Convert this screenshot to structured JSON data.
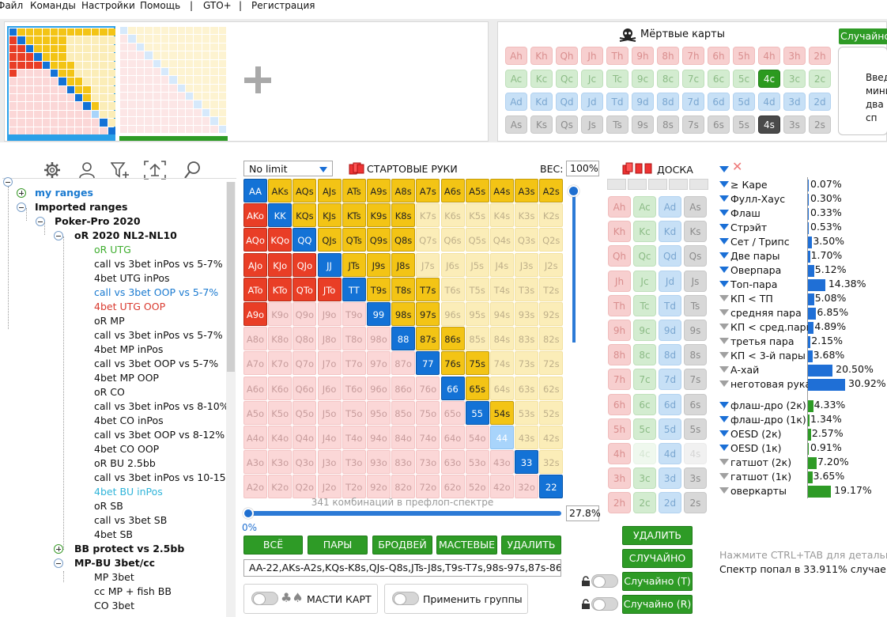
{
  "menu": [
    "Файл",
    "Команды",
    "Настройки",
    "Помощь",
    "|",
    "GTO+",
    "|",
    "Регистрация"
  ],
  "dead_cards": {
    "title": "Мёртвые карты",
    "random_label": "Случайно",
    "hint": "Введ мини два сп",
    "hint_lines": [
      "Введ",
      "мини",
      "два сп"
    ],
    "ranks": [
      "A",
      "K",
      "Q",
      "J",
      "T",
      "9",
      "8",
      "7",
      "6",
      "5",
      "4",
      "3",
      "2"
    ],
    "suits": [
      "h",
      "c",
      "d",
      "s"
    ],
    "selected": [
      "4c",
      "4s"
    ]
  },
  "tree": {
    "items": [
      {
        "label": "my ranges",
        "level": 1,
        "color": "#1a7ad0",
        "bold": true,
        "toggle": "plus"
      },
      {
        "label": "Imported ranges",
        "level": 1,
        "color": "#111",
        "bold": true,
        "toggle": "minus"
      },
      {
        "label": "Poker-Pro 2020",
        "level": 2,
        "color": "#111",
        "bold": true,
        "toggle": "minus"
      },
      {
        "label": "oR 2020 NL2-NL10",
        "level": 3,
        "color": "#111",
        "bold": true,
        "toggle": "minus"
      },
      {
        "label": "oR UTG",
        "level": 4,
        "color": "#3fae2f"
      },
      {
        "label": "call vs 3bet inPos vs 5-7%",
        "level": 4,
        "color": "#111"
      },
      {
        "label": "4bet UTG inPos",
        "level": 4,
        "color": "#111"
      },
      {
        "label": "call  vs 3bet OOP vs 5-7%",
        "level": 4,
        "color": "#1a7ad0"
      },
      {
        "label": "4bet UTG OOP",
        "level": 4,
        "color": "#d93a2f"
      },
      {
        "label": "oR MP",
        "level": 4,
        "color": "#111"
      },
      {
        "label": "call vs 3bet inPos vs 5-7%",
        "level": 4,
        "color": "#111"
      },
      {
        "label": "4bet MP inPos",
        "level": 4,
        "color": "#111"
      },
      {
        "label": "call vs 3bet OOP vs 5-7%",
        "level": 4,
        "color": "#111"
      },
      {
        "label": "4bet MP OOP",
        "level": 4,
        "color": "#111"
      },
      {
        "label": "oR CO",
        "level": 4,
        "color": "#111"
      },
      {
        "label": "call vs 3bet inPos vs 8-10%",
        "level": 4,
        "color": "#111"
      },
      {
        "label": "4bet CO inPos",
        "level": 4,
        "color": "#111"
      },
      {
        "label": "call vs 3bet OOP vs 8-12%",
        "level": 4,
        "color": "#111"
      },
      {
        "label": "4bet CO OOP",
        "level": 4,
        "color": "#111"
      },
      {
        "label": "oR BU 2.5bb",
        "level": 4,
        "color": "#111"
      },
      {
        "label": "call vs 3bet inPos vs 10-15%",
        "level": 4,
        "color": "#111"
      },
      {
        "label": "4bet BU inPos",
        "level": 4,
        "color": "#2fb4d9"
      },
      {
        "label": "oR SB",
        "level": 4,
        "color": "#111"
      },
      {
        "label": "call vs 3bet SB",
        "level": 4,
        "color": "#111"
      },
      {
        "label": "4bet SB",
        "level": 4,
        "color": "#111"
      },
      {
        "label": "BB protect vs 2.5bb",
        "level": 3,
        "color": "#111",
        "bold": true,
        "toggle": "plus"
      },
      {
        "label": "MP-BU 3bet/cc",
        "level": 3,
        "color": "#111",
        "bold": true,
        "toggle": "minus"
      },
      {
        "label": "MP 3bet",
        "level": 4,
        "color": "#111"
      },
      {
        "label": "cc MP + fish BB",
        "level": 4,
        "color": "#111"
      },
      {
        "label": "CO 3bet",
        "level": 4,
        "color": "#111"
      }
    ]
  },
  "controls": {
    "game_type": "No limit",
    "start_hands_label": "СТАРТОВЫЕ РУКИ",
    "weight_label": "ВЕС:",
    "weight_value": "100%",
    "combos_text": "341 комбинаций в префлоп-спектре",
    "slider_min": "0%",
    "slider_value": "27.8%",
    "buttons": [
      "ВСЁ",
      "ПАРЫ",
      "БРОДВЕЙ",
      "МАСТЕВЫЕ",
      "УДАЛИТЬ"
    ],
    "range_text": "AA-22,AKs-A2s,KQs-K8s,QJs-Q8s,JTs-J8s,T9s-T7s,98s-97s,87s-86s,",
    "suits_toggle_label": "МАСТИ КАРТ",
    "groups_toggle_label": "Применить группы"
  },
  "matrix": {
    "ranks": [
      "A",
      "K",
      "Q",
      "J",
      "T",
      "9",
      "8",
      "7",
      "6",
      "5",
      "4",
      "3",
      "2"
    ],
    "suited_selected": [
      "AKs",
      "AQs",
      "AJs",
      "ATs",
      "A9s",
      "A8s",
      "A7s",
      "A6s",
      "A5s",
      "A4s",
      "A3s",
      "A2s",
      "KQs",
      "KJs",
      "KTs",
      "K9s",
      "K8s",
      "QJs",
      "QTs",
      "Q9s",
      "Q8s",
      "JTs",
      "J9s",
      "J8s",
      "T9s",
      "T8s",
      "T7s",
      "98s",
      "97s",
      "87s",
      "86s",
      "76s",
      "75s",
      "65s",
      "54s"
    ],
    "offsuit_selected": [
      "AKo",
      "AQo",
      "AJo",
      "ATo",
      "A9o",
      "KQo",
      "KJo",
      "KTo",
      "QJo",
      "QTo",
      "JTo"
    ],
    "pairs_selected": [
      "AA",
      "KK",
      "QQ",
      "JJ",
      "TT",
      "99",
      "88",
      "77",
      "66",
      "55",
      "33",
      "22"
    ]
  },
  "board": {
    "title": "ДОСКА",
    "buttons": [
      "УДАЛИТЬ",
      "СЛУЧАЙНО",
      "Случайно (T)",
      "Случайно (R)"
    ],
    "unavailable": [
      "4c",
      "4s"
    ]
  },
  "stats": {
    "made": [
      {
        "label": "≥ Каре",
        "pct": "0.07%",
        "value": 0.07,
        "filter": "blue"
      },
      {
        "label": "Фулл-Хаус",
        "pct": "0.30%",
        "value": 0.3,
        "filter": "blue"
      },
      {
        "label": "Флаш",
        "pct": "0.33%",
        "value": 0.33,
        "filter": "blue"
      },
      {
        "label": "Стрэйт",
        "pct": "0.53%",
        "value": 0.53,
        "filter": "blue"
      },
      {
        "label": "Сет / Трипс",
        "pct": "3.50%",
        "value": 3.5,
        "filter": "blue"
      },
      {
        "label": "Две пары",
        "pct": "1.70%",
        "value": 1.7,
        "filter": "blue"
      },
      {
        "label": "Оверпара",
        "pct": "5.12%",
        "value": 5.12,
        "filter": "blue"
      },
      {
        "label": "Топ-пара",
        "pct": "14.38%",
        "value": 14.38,
        "filter": "blue"
      },
      {
        "label": "КП < ТП",
        "pct": "5.08%",
        "value": 5.08,
        "filter": "grey"
      },
      {
        "label": "средняя пара",
        "pct": "6.85%",
        "value": 6.85,
        "filter": "grey"
      },
      {
        "label": "КП < сред.пары",
        "pct": "4.89%",
        "value": 4.89,
        "filter": "grey"
      },
      {
        "label": "третья пара",
        "pct": "2.15%",
        "value": 2.15,
        "filter": "grey"
      },
      {
        "label": "КП < 3-й пары",
        "pct": "3.68%",
        "value": 3.68,
        "filter": "grey"
      },
      {
        "label": "А-хай",
        "pct": "20.50%",
        "value": 20.5,
        "filter": "grey"
      },
      {
        "label": "неготовая рука",
        "pct": "30.92%",
        "value": 30.92,
        "filter": "grey"
      }
    ],
    "draws": [
      {
        "label": "флаш-дро (2к)",
        "pct": "4.33%",
        "value": 4.33,
        "filter": "blue"
      },
      {
        "label": "флаш-дро (1к)",
        "pct": "1.34%",
        "value": 1.34,
        "filter": "blue"
      },
      {
        "label": "OESD (2к)",
        "pct": "2.57%",
        "value": 2.57,
        "filter": "blue"
      },
      {
        "label": "OESD (1к)",
        "pct": "0.91%",
        "value": 0.91,
        "filter": "blue"
      },
      {
        "label": "гатшот (2к)",
        "pct": "7.20%",
        "value": 7.2,
        "filter": "grey"
      },
      {
        "label": "гатшот (1к)",
        "pct": "3.65%",
        "value": 3.65,
        "filter": "grey"
      },
      {
        "label": "оверкарты",
        "pct": "19.17%",
        "value": 19.17,
        "filter": "grey"
      }
    ],
    "hint": "Нажмите CTRL+TAB для детальны",
    "spectrum_text": "Спектр попал в 33.911% случаев"
  }
}
